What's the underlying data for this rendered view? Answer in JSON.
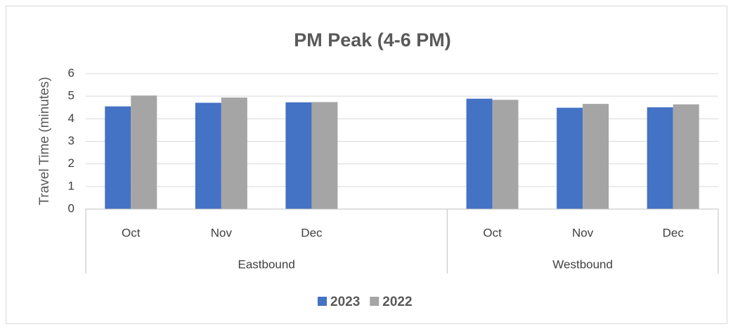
{
  "chart_data": {
    "type": "bar",
    "title": "PM Peak (4-6 PM)",
    "y_label": "Travel Time (minutes)",
    "categories": [
      "Oct",
      "Nov",
      "Dec",
      null,
      "Oct",
      "Nov",
      "Dec"
    ],
    "groups": [
      "Eastbound",
      "Eastbound",
      "Eastbound",
      "Eastbound",
      "Westbound",
      "Westbound",
      "Westbound"
    ],
    "series": [
      {
        "name": "2023",
        "color": "#4472c4",
        "values": [
          4.55,
          4.71,
          4.73,
          null,
          4.89,
          4.49,
          4.51
        ]
      },
      {
        "name": "2022",
        "color": "#a5a5a5",
        "values": [
          5.03,
          4.94,
          4.74,
          null,
          4.84,
          4.66,
          4.64
        ]
      }
    ],
    "ylim": [
      0,
      6
    ],
    "yticks": [
      0,
      1,
      2,
      3,
      4,
      5,
      6
    ],
    "grid": true,
    "legend": "bottom"
  }
}
